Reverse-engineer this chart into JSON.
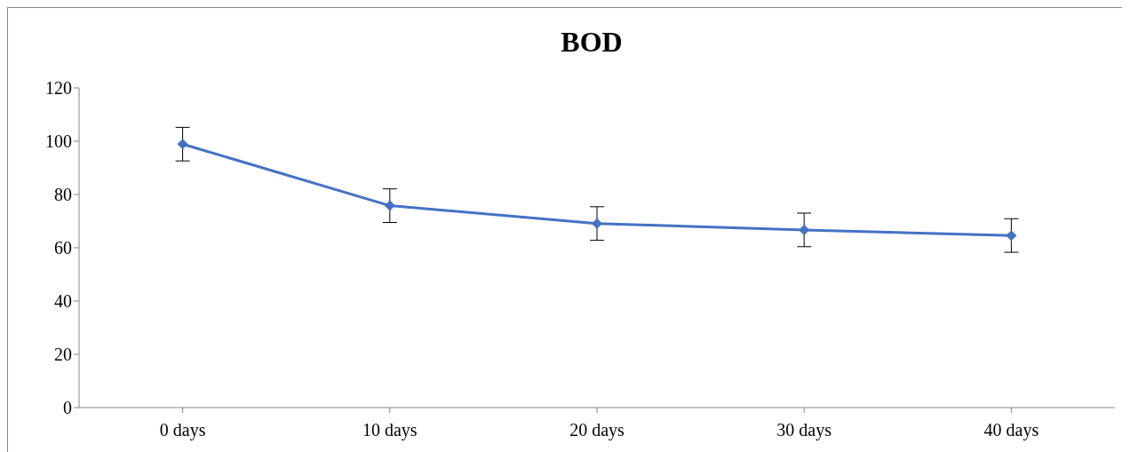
{
  "chart_data": {
    "type": "line",
    "title": "BOD",
    "categories": [
      "0 days",
      "10 days",
      "20 days",
      "30 days",
      "40 days"
    ],
    "series": [
      {
        "color": "#4472c4",
        "values": [
          98.9,
          75.8,
          69.1,
          66.7,
          64.6
        ],
        "errors": [
          6.3,
          6.3,
          6.3,
          6.3,
          6.3
        ]
      }
    ],
    "ylim": [
      0,
      120
    ],
    "yticks": [
      0,
      20,
      40,
      60,
      80,
      100,
      120
    ],
    "grid": false,
    "legend": false,
    "marker": "diamond",
    "line_style": "solid"
  }
}
